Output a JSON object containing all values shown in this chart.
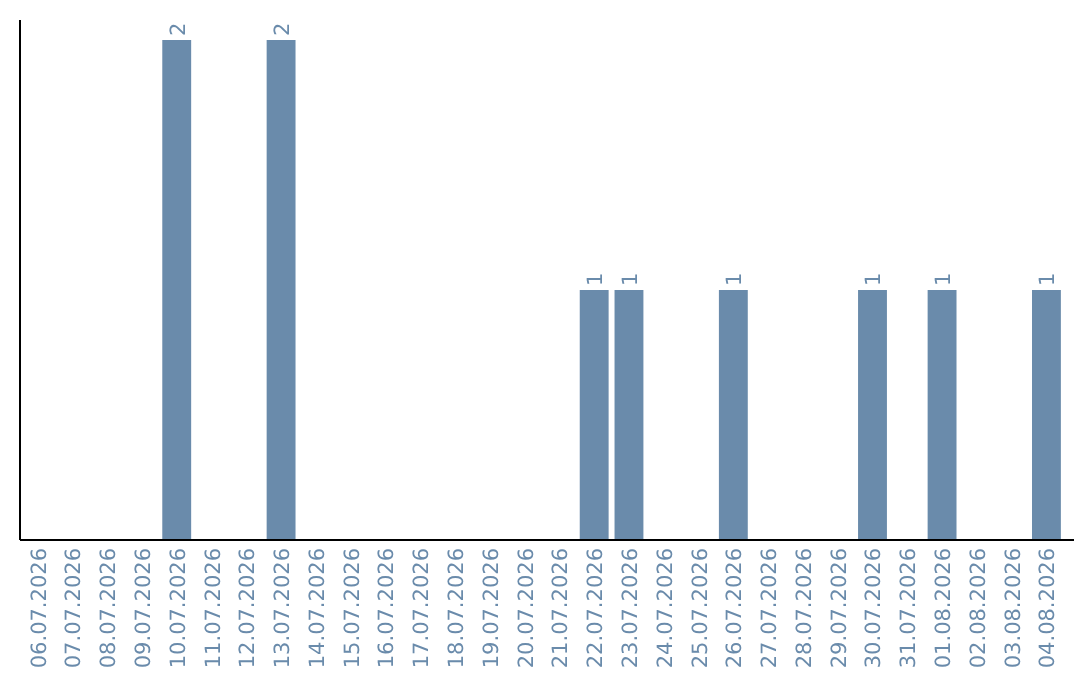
{
  "chart_data": {
    "type": "bar",
    "categories": [
      "06.07.2026",
      "07.07.2026",
      "08.07.2026",
      "09.07.2026",
      "10.07.2026",
      "11.07.2026",
      "12.07.2026",
      "13.07.2026",
      "14.07.2026",
      "15.07.2026",
      "16.07.2026",
      "17.07.2026",
      "18.07.2026",
      "19.07.2026",
      "20.07.2026",
      "21.07.2026",
      "22.07.2026",
      "23.07.2026",
      "24.07.2026",
      "25.07.2026",
      "26.07.2026",
      "27.07.2026",
      "28.07.2026",
      "29.07.2026",
      "30.07.2026",
      "31.07.2026",
      "01.08.2026",
      "02.08.2026",
      "03.08.2026",
      "04.08.2026"
    ],
    "values": [
      0,
      0,
      0,
      0,
      2,
      0,
      0,
      2,
      0,
      0,
      0,
      0,
      0,
      0,
      0,
      0,
      1,
      1,
      0,
      0,
      1,
      0,
      0,
      0,
      1,
      0,
      1,
      0,
      0,
      1
    ],
    "value_labels": [
      null,
      null,
      null,
      null,
      "2",
      null,
      null,
      "2",
      null,
      null,
      null,
      null,
      null,
      null,
      null,
      null,
      "1",
      "1",
      null,
      null,
      "1",
      null,
      null,
      null,
      "1",
      null,
      "1",
      null,
      null,
      "1"
    ],
    "color": "#6a8bab"
  }
}
